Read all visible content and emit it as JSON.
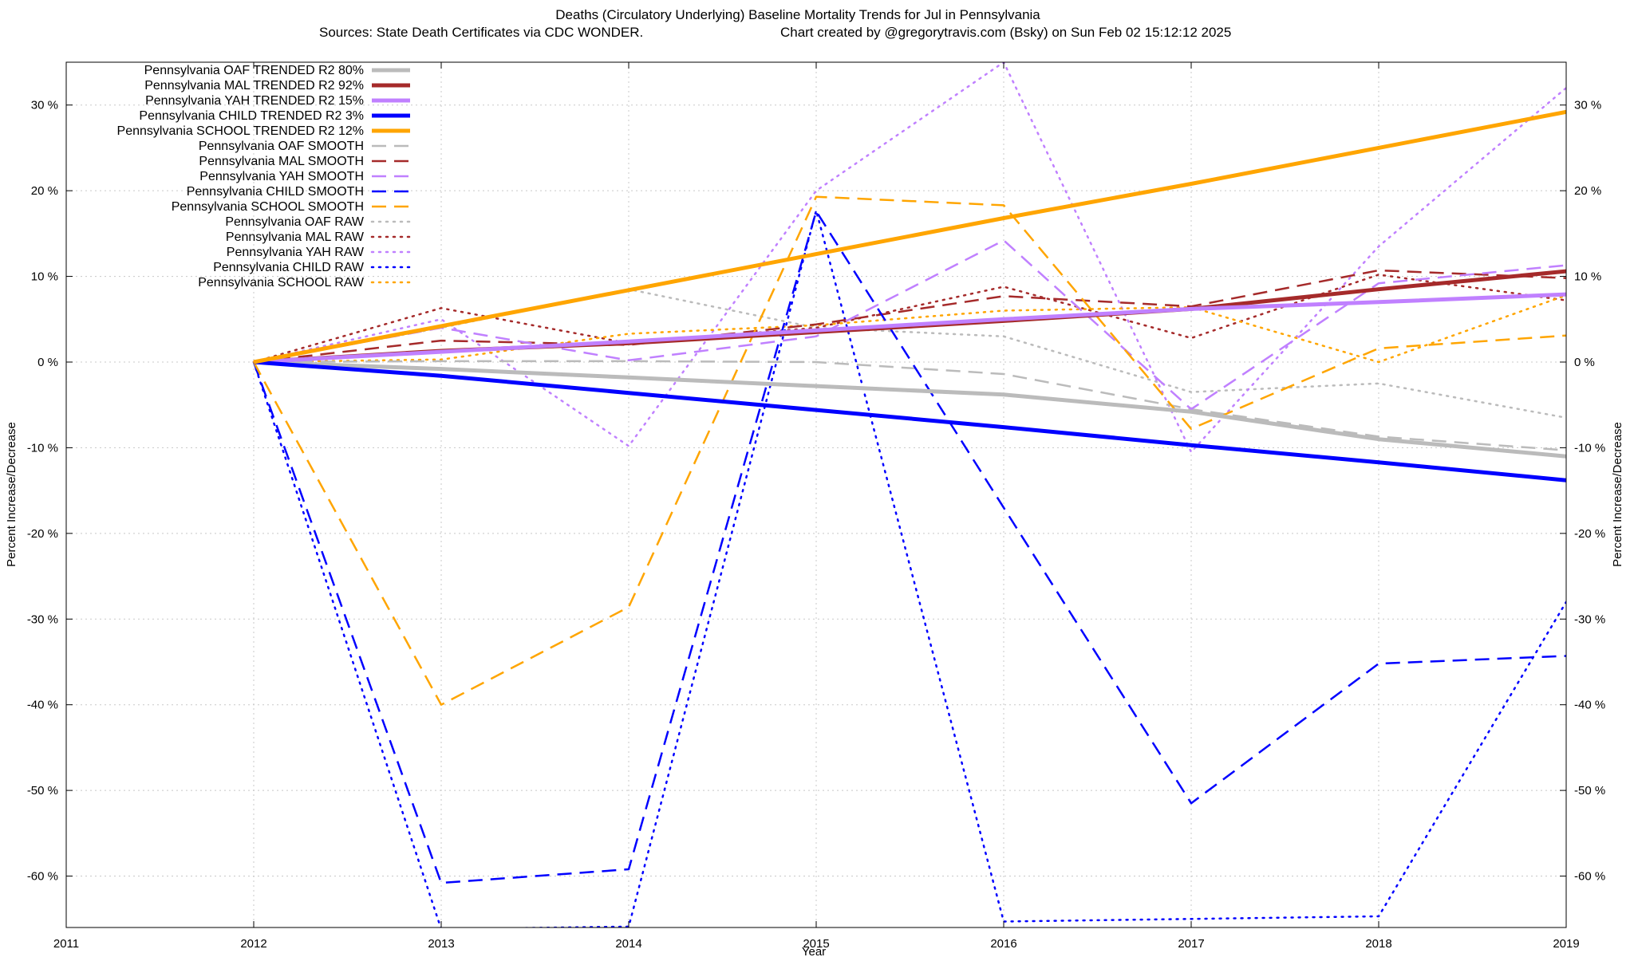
{
  "title": "Deaths (Circulatory Underlying)  Baseline Mortality Trends for Jul in Pennsylvania",
  "subtitle_left": "Sources: State Death Certificates via CDC WONDER.",
  "subtitle_right": "Chart created by @gregorytravis.com (Bsky) on Sun Feb 02 15:12:12 2025",
  "chart_data": {
    "type": "line",
    "xlabel": "Year",
    "ylabel": "Percent Increase/Decrease",
    "y2label": "Percent Increase/Decrease",
    "xlim": [
      2011,
      2019
    ],
    "ylim": [
      -66,
      35
    ],
    "x_ticks": [
      2011,
      2012,
      2013,
      2014,
      2015,
      2016,
      2017,
      2018,
      2019
    ],
    "y_ticks": [
      30,
      20,
      10,
      0,
      -10,
      -20,
      -30,
      -40,
      -50,
      -60
    ],
    "y_tick_suffix": " %",
    "grid": true,
    "legend_position": "top-left",
    "series": [
      {
        "name": "Pennsylvania OAF TRENDED R2  80%",
        "style": "solid",
        "color": "#bbbbbb",
        "width": 5,
        "x": [
          2012,
          2013,
          2014,
          2015,
          2016,
          2017,
          2018,
          2019
        ],
        "y": [
          0,
          -0.8,
          -1.8,
          -2.8,
          -3.8,
          -5.8,
          -9.0,
          -11.0
        ]
      },
      {
        "name": "Pennsylvania MAL TRENDED R2  92%",
        "style": "solid",
        "color": "#a52a2a",
        "width": 5,
        "x": [
          2012,
          2013,
          2014,
          2015,
          2016,
          2017,
          2018,
          2019
        ],
        "y": [
          0,
          1.3,
          2.2,
          3.5,
          4.8,
          6.2,
          8.5,
          10.6
        ]
      },
      {
        "name": "Pennsylvania YAH TRENDED R2  15%",
        "style": "solid",
        "color": "#c080ff",
        "width": 5,
        "x": [
          2012,
          2013,
          2014,
          2015,
          2016,
          2017,
          2018,
          2019
        ],
        "y": [
          0,
          1.2,
          2.4,
          3.7,
          5.0,
          6.2,
          7.0,
          7.9
        ]
      },
      {
        "name": "Pennsylvania CHILD TRENDED R2   3%",
        "style": "solid",
        "color": "#0000ff",
        "width": 5,
        "x": [
          2012,
          2013,
          2014,
          2015,
          2016,
          2017,
          2018,
          2019
        ],
        "y": [
          0,
          -1.6,
          -3.6,
          -5.6,
          -7.6,
          -9.7,
          -11.7,
          -13.8
        ]
      },
      {
        "name": "Pennsylvania SCHOOL TRENDED R2  12%",
        "style": "solid",
        "color": "#ffa500",
        "width": 5,
        "x": [
          2012,
          2013,
          2014,
          2015,
          2016,
          2017,
          2018,
          2019
        ],
        "y": [
          0,
          4.2,
          8.4,
          12.6,
          16.8,
          20.8,
          25.0,
          29.2
        ]
      },
      {
        "name": "Pennsylvania OAF SMOOTH",
        "style": "dashed",
        "color": "#bbbbbb",
        "width": 2.5,
        "x": [
          2012,
          2013,
          2014,
          2015,
          2016,
          2017,
          2018,
          2019
        ],
        "y": [
          0,
          0.1,
          0.1,
          0,
          -1.4,
          -5.5,
          -8.7,
          -10.3
        ]
      },
      {
        "name": "Pennsylvania MAL SMOOTH",
        "style": "dashed",
        "color": "#a52a2a",
        "width": 2.5,
        "x": [
          2012,
          2013,
          2014,
          2015,
          2016,
          2017,
          2018,
          2019
        ],
        "y": [
          0,
          2.5,
          2.0,
          4.4,
          7.7,
          6.5,
          10.7,
          9.8
        ]
      },
      {
        "name": "Pennsylvania YAH SMOOTH",
        "style": "dashed",
        "color": "#c080ff",
        "width": 2.5,
        "x": [
          2012,
          2013,
          2014,
          2015,
          2016,
          2017,
          2018,
          2019
        ],
        "y": [
          0,
          4.0,
          0.2,
          3.0,
          14.2,
          -5.5,
          9.2,
          11.3
        ]
      },
      {
        "name": "Pennsylvania CHILD SMOOTH",
        "style": "dashed",
        "color": "#0000ff",
        "width": 2.5,
        "x": [
          2012,
          2013,
          2014,
          2015,
          2016,
          2017,
          2018,
          2019
        ],
        "y": [
          0,
          -60.8,
          -59.2,
          17.6,
          -17.0,
          -51.5,
          -35.2,
          -34.3
        ]
      },
      {
        "name": "Pennsylvania SCHOOL SMOOTH",
        "style": "dashed",
        "color": "#ffa500",
        "width": 2.5,
        "x": [
          2012,
          2013,
          2014,
          2015,
          2016,
          2017,
          2018,
          2019
        ],
        "y": [
          0,
          -40.0,
          -28.6,
          19.3,
          18.3,
          -7.8,
          1.6,
          3.1
        ]
      },
      {
        "name": "Pennsylvania OAF RAW",
        "style": "dotted",
        "color": "#bbbbbb",
        "width": 2.5,
        "x": [
          2012,
          2013,
          2014,
          2015,
          2016,
          2017,
          2018,
          2019
        ],
        "y": [
          0,
          4.0,
          8.5,
          4.0,
          3.0,
          -3.5,
          -2.5,
          -6.5
        ]
      },
      {
        "name": "Pennsylvania MAL RAW",
        "style": "dotted",
        "color": "#a52a2a",
        "width": 2.5,
        "x": [
          2012,
          2013,
          2014,
          2015,
          2016,
          2017,
          2018,
          2019
        ],
        "y": [
          0,
          6.3,
          2.2,
          4.0,
          8.8,
          2.8,
          10.2,
          7.2
        ]
      },
      {
        "name": "Pennsylvania YAH RAW",
        "style": "dotted",
        "color": "#c080ff",
        "width": 2.5,
        "x": [
          2012,
          2013,
          2014,
          2015,
          2016,
          2017,
          2018,
          2019
        ],
        "y": [
          0,
          5.0,
          -9.8,
          20.0,
          35.0,
          -10.5,
          13.5,
          32.0
        ]
      },
      {
        "name": "Pennsylvania CHILD RAW",
        "style": "dotted",
        "color": "#0000ff",
        "width": 2.5,
        "x": [
          2012,
          2013,
          2014,
          2015,
          2016,
          2017,
          2018,
          2019
        ],
        "y": [
          0,
          -66.2,
          -65.9,
          17.7,
          -65.3,
          -65.0,
          -64.7,
          -28.0
        ]
      },
      {
        "name": "Pennsylvania SCHOOL RAW",
        "style": "dotted",
        "color": "#ffa500",
        "width": 2.5,
        "x": [
          2012,
          2013,
          2014,
          2015,
          2016,
          2017,
          2018,
          2019
        ],
        "y": [
          0,
          0.3,
          3.3,
          4.3,
          6.0,
          6.4,
          0.0,
          7.8
        ]
      }
    ]
  }
}
